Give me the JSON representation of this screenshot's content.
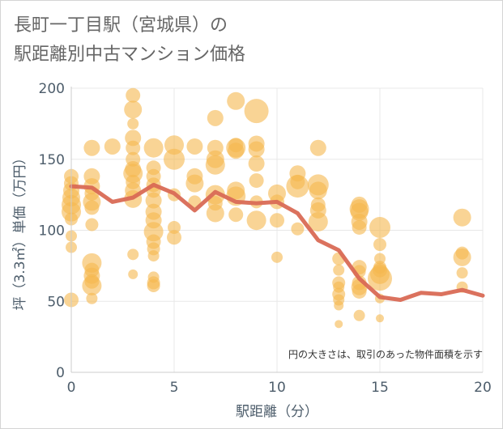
{
  "chart_data": {
    "type": "scatter",
    "title_line1": "長町一丁目駅（宮城県）の",
    "title_line2": "駅距離別中古マンション価格",
    "xlabel": "駅距離（分）",
    "ylabel": "坪（3.3㎡）単価（万円）",
    "xlim": [
      0,
      20
    ],
    "ylim": [
      0,
      200
    ],
    "xticks": [
      0,
      5,
      10,
      15,
      20
    ],
    "yticks": [
      0,
      50,
      100,
      150,
      200
    ],
    "grid": true,
    "annotation": "円の大きさは、取引のあった物件面積を示す",
    "colors": {
      "bubble": "#f5b84f",
      "line": "#d96a55",
      "grid": "#e8e8e8",
      "axis": "#4d5d6b"
    },
    "points": [
      {
        "x": 0,
        "y": 138,
        "s": 9
      },
      {
        "x": 0,
        "y": 133,
        "s": 9
      },
      {
        "x": 0,
        "y": 128,
        "s": 10
      },
      {
        "x": 0,
        "y": 123,
        "s": 11
      },
      {
        "x": 0,
        "y": 118,
        "s": 12
      },
      {
        "x": 0,
        "y": 113,
        "s": 12
      },
      {
        "x": 0,
        "y": 108,
        "s": 8
      },
      {
        "x": 0,
        "y": 96,
        "s": 7
      },
      {
        "x": 0,
        "y": 88,
        "s": 7
      },
      {
        "x": 0,
        "y": 51,
        "s": 9
      },
      {
        "x": 1,
        "y": 158,
        "s": 10
      },
      {
        "x": 1,
        "y": 138,
        "s": 10
      },
      {
        "x": 1,
        "y": 131,
        "s": 10
      },
      {
        "x": 1,
        "y": 126,
        "s": 9
      },
      {
        "x": 1,
        "y": 120,
        "s": 11
      },
      {
        "x": 1,
        "y": 116,
        "s": 9
      },
      {
        "x": 1,
        "y": 104,
        "s": 8
      },
      {
        "x": 1,
        "y": 77,
        "s": 12
      },
      {
        "x": 1,
        "y": 72,
        "s": 9
      },
      {
        "x": 1,
        "y": 68,
        "s": 10
      },
      {
        "x": 1,
        "y": 64,
        "s": 9
      },
      {
        "x": 1,
        "y": 61,
        "s": 12
      },
      {
        "x": 1,
        "y": 52,
        "s": 7
      },
      {
        "x": 2,
        "y": 159,
        "s": 10
      },
      {
        "x": 3,
        "y": 195,
        "s": 9
      },
      {
        "x": 3,
        "y": 185,
        "s": 11
      },
      {
        "x": 3,
        "y": 175,
        "s": 7
      },
      {
        "x": 3,
        "y": 165,
        "s": 10
      },
      {
        "x": 3,
        "y": 158,
        "s": 9
      },
      {
        "x": 3,
        "y": 150,
        "s": 9
      },
      {
        "x": 3,
        "y": 143,
        "s": 10
      },
      {
        "x": 3,
        "y": 140,
        "s": 12
      },
      {
        "x": 3,
        "y": 134,
        "s": 9
      },
      {
        "x": 3,
        "y": 128,
        "s": 10
      },
      {
        "x": 3,
        "y": 122,
        "s": 11
      },
      {
        "x": 3,
        "y": 83,
        "s": 7
      },
      {
        "x": 3,
        "y": 69,
        "s": 6
      },
      {
        "x": 4,
        "y": 158,
        "s": 12
      },
      {
        "x": 4,
        "y": 144,
        "s": 9
      },
      {
        "x": 4,
        "y": 138,
        "s": 9
      },
      {
        "x": 4,
        "y": 132,
        "s": 9
      },
      {
        "x": 4,
        "y": 128,
        "s": 9
      },
      {
        "x": 4,
        "y": 121,
        "s": 10
      },
      {
        "x": 4,
        "y": 113,
        "s": 10
      },
      {
        "x": 4,
        "y": 107,
        "s": 10
      },
      {
        "x": 4,
        "y": 99,
        "s": 12
      },
      {
        "x": 4,
        "y": 92,
        "s": 9
      },
      {
        "x": 4,
        "y": 87,
        "s": 8
      },
      {
        "x": 4,
        "y": 82,
        "s": 7
      },
      {
        "x": 4,
        "y": 67,
        "s": 7
      },
      {
        "x": 4,
        "y": 63,
        "s": 8
      },
      {
        "x": 4,
        "y": 61,
        "s": 8
      },
      {
        "x": 5,
        "y": 160,
        "s": 12
      },
      {
        "x": 5,
        "y": 150,
        "s": 13
      },
      {
        "x": 5,
        "y": 125,
        "s": 8
      },
      {
        "x": 5,
        "y": 102,
        "s": 8
      },
      {
        "x": 5,
        "y": 95,
        "s": 9
      },
      {
        "x": 6,
        "y": 159,
        "s": 10
      },
      {
        "x": 6,
        "y": 138,
        "s": 10
      },
      {
        "x": 6,
        "y": 133,
        "s": 11
      },
      {
        "x": 6,
        "y": 120,
        "s": 8
      },
      {
        "x": 7,
        "y": 179,
        "s": 10
      },
      {
        "x": 7,
        "y": 158,
        "s": 10
      },
      {
        "x": 7,
        "y": 150,
        "s": 11
      },
      {
        "x": 7,
        "y": 146,
        "s": 12
      },
      {
        "x": 7,
        "y": 125,
        "s": 12
      },
      {
        "x": 7,
        "y": 119,
        "s": 9
      },
      {
        "x": 7,
        "y": 112,
        "s": 11
      },
      {
        "x": 8,
        "y": 191,
        "s": 11
      },
      {
        "x": 8,
        "y": 160,
        "s": 9
      },
      {
        "x": 8,
        "y": 158,
        "s": 12
      },
      {
        "x": 8,
        "y": 156,
        "s": 10
      },
      {
        "x": 8,
        "y": 128,
        "s": 11
      },
      {
        "x": 8,
        "y": 124,
        "s": 12
      },
      {
        "x": 8,
        "y": 111,
        "s": 9
      },
      {
        "x": 9,
        "y": 184,
        "s": 15
      },
      {
        "x": 9,
        "y": 161,
        "s": 10
      },
      {
        "x": 9,
        "y": 157,
        "s": 10
      },
      {
        "x": 9,
        "y": 147,
        "s": 10
      },
      {
        "x": 9,
        "y": 135,
        "s": 9
      },
      {
        "x": 9,
        "y": 120,
        "s": 8
      },
      {
        "x": 9,
        "y": 107,
        "s": 12
      },
      {
        "x": 10,
        "y": 126,
        "s": 11
      },
      {
        "x": 10,
        "y": 120,
        "s": 9
      },
      {
        "x": 10,
        "y": 107,
        "s": 9
      },
      {
        "x": 10,
        "y": 81,
        "s": 7
      },
      {
        "x": 11,
        "y": 140,
        "s": 10
      },
      {
        "x": 11,
        "y": 134,
        "s": 9
      },
      {
        "x": 11,
        "y": 131,
        "s": 14
      },
      {
        "x": 11,
        "y": 101,
        "s": 8
      },
      {
        "x": 12,
        "y": 158,
        "s": 10
      },
      {
        "x": 12,
        "y": 132,
        "s": 13
      },
      {
        "x": 12,
        "y": 128,
        "s": 11
      },
      {
        "x": 12,
        "y": 118,
        "s": 9
      },
      {
        "x": 12,
        "y": 114,
        "s": 10
      },
      {
        "x": 12,
        "y": 106,
        "s": 12
      },
      {
        "x": 13,
        "y": 80,
        "s": 8
      },
      {
        "x": 13,
        "y": 72,
        "s": 7
      },
      {
        "x": 13,
        "y": 63,
        "s": 8
      },
      {
        "x": 13,
        "y": 60,
        "s": 7
      },
      {
        "x": 13,
        "y": 55,
        "s": 8
      },
      {
        "x": 13,
        "y": 51,
        "s": 7
      },
      {
        "x": 13,
        "y": 47,
        "s": 6
      },
      {
        "x": 13,
        "y": 34,
        "s": 5
      },
      {
        "x": 14,
        "y": 118,
        "s": 10
      },
      {
        "x": 14,
        "y": 115,
        "s": 12
      },
      {
        "x": 14,
        "y": 113,
        "s": 11
      },
      {
        "x": 14,
        "y": 106,
        "s": 10
      },
      {
        "x": 14,
        "y": 102,
        "s": 9
      },
      {
        "x": 14,
        "y": 74,
        "s": 9
      },
      {
        "x": 14,
        "y": 71,
        "s": 8
      },
      {
        "x": 14,
        "y": 63,
        "s": 9
      },
      {
        "x": 14,
        "y": 60,
        "s": 10
      },
      {
        "x": 14,
        "y": 57,
        "s": 9
      },
      {
        "x": 14,
        "y": 40,
        "s": 7
      },
      {
        "x": 15,
        "y": 102,
        "s": 13
      },
      {
        "x": 15,
        "y": 90,
        "s": 8
      },
      {
        "x": 15,
        "y": 80,
        "s": 7
      },
      {
        "x": 15,
        "y": 74,
        "s": 8
      },
      {
        "x": 15,
        "y": 72,
        "s": 9
      },
      {
        "x": 15,
        "y": 69,
        "s": 12
      },
      {
        "x": 15,
        "y": 66,
        "s": 15
      },
      {
        "x": 15,
        "y": 52,
        "s": 6
      },
      {
        "x": 15,
        "y": 38,
        "s": 5
      },
      {
        "x": 19,
        "y": 109,
        "s": 11
      },
      {
        "x": 19,
        "y": 84,
        "s": 8
      },
      {
        "x": 19,
        "y": 81,
        "s": 11
      },
      {
        "x": 19,
        "y": 70,
        "s": 7
      },
      {
        "x": 19,
        "y": 60,
        "s": 7
      }
    ],
    "trend": {
      "x": [
        0,
        1,
        2,
        3,
        4,
        5,
        6,
        7,
        8,
        9,
        10,
        11,
        12,
        13,
        14,
        15,
        16,
        17,
        18,
        19,
        20
      ],
      "y": [
        131,
        130,
        120,
        123,
        132,
        126,
        114,
        127,
        120,
        119,
        120,
        112,
        93,
        86,
        66,
        53,
        51,
        56,
        55,
        58,
        54
      ]
    }
  }
}
